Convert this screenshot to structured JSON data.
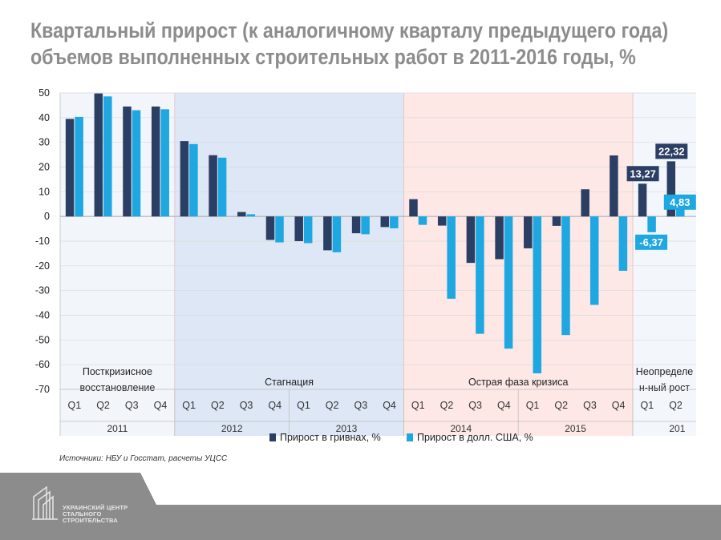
{
  "header": {
    "title_line1": "Квартальный прирост (к аналогичному кварталу предыдущего года)",
    "title_line2": "объемов выполненных строительных работ в 2011-2016 годы, %"
  },
  "source_note": "Источники: НБУ и Госстат, расчеты УЦСС",
  "logo": {
    "line1": "УКРАИНСКИЙ ЦЕНТР",
    "line2": "СТАЛЬНОГО",
    "line3": "СТРОИТЕЛЬСТВА"
  },
  "colors": {
    "uah": "#2b3e63",
    "usd": "#1ea7e1",
    "phase_recovery": "#f2f5fa",
    "phase_stagnation": "#dde7f5",
    "phase_crisis": "#fde8e6",
    "phase_uncertain": "#f3f7fc",
    "footer": "#8c8c8c",
    "title": "#8c8c8c"
  },
  "chart_data": {
    "type": "bar",
    "ylim": [
      -70,
      50
    ],
    "yticks": [
      50,
      40,
      30,
      20,
      10,
      0,
      -10,
      -20,
      -30,
      -40,
      -50,
      -60,
      -70
    ],
    "grid": true,
    "legend_position": "bottom",
    "quarters": [
      "Q1",
      "Q2",
      "Q3",
      "Q4",
      "Q1",
      "Q2",
      "Q3",
      "Q4",
      "Q1",
      "Q2",
      "Q3",
      "Q4",
      "Q1",
      "Q2",
      "Q3",
      "Q4",
      "Q1",
      "Q2",
      "Q3",
      "Q4",
      "Q1",
      "Q2"
    ],
    "years": [
      {
        "label": "2011",
        "quarters": 4
      },
      {
        "label": "2012",
        "quarters": 4
      },
      {
        "label": "2013",
        "quarters": 4
      },
      {
        "label": "2014",
        "quarters": 4
      },
      {
        "label": "2015",
        "quarters": 4
      },
      {
        "label": "201",
        "quarters": 2
      }
    ],
    "series": [
      {
        "name": "Прирост в гривнах, %",
        "color": "#2b3e63",
        "values": [
          39.5,
          49.8,
          44.5,
          44.5,
          30.5,
          24.8,
          1.8,
          -9.5,
          -10.0,
          -13.7,
          -6.8,
          -4.3,
          7.0,
          -3.7,
          -18.8,
          -17.3,
          -12.9,
          -3.8,
          11.0,
          24.7,
          13.27,
          22.32
        ]
      },
      {
        "name": "Прирост в долл. США, %",
        "color": "#1ea7e1",
        "values": [
          40.3,
          48.6,
          43.0,
          43.4,
          29.3,
          23.8,
          0.9,
          -10.5,
          -10.8,
          -14.5,
          -7.2,
          -4.8,
          -3.4,
          -33.3,
          -47.5,
          -53.5,
          -63.5,
          -48.0,
          -35.8,
          -22.0,
          -6.37,
          4.83
        ]
      }
    ],
    "data_labels": [
      {
        "series": 0,
        "index": 20,
        "text": "13,27"
      },
      {
        "series": 0,
        "index": 21,
        "text": "22,32"
      },
      {
        "series": 1,
        "index": 20,
        "text": "-6,37"
      },
      {
        "series": 1,
        "index": 21,
        "text": "4,83"
      }
    ],
    "phases": [
      {
        "label_lines": [
          "Посткризисное",
          "восстановление"
        ],
        "start": 0,
        "end": 4,
        "color_key": "phase_recovery"
      },
      {
        "label_lines": [
          "Стагнация"
        ],
        "start": 4,
        "end": 12,
        "color_key": "phase_stagnation"
      },
      {
        "label_lines": [
          "Острая фаза кризиса"
        ],
        "start": 12,
        "end": 20,
        "color_key": "phase_crisis"
      },
      {
        "label_lines": [
          "Неопределе",
          "н-ный рост"
        ],
        "start": 20,
        "end": 22,
        "color_key": "phase_uncertain"
      }
    ]
  }
}
